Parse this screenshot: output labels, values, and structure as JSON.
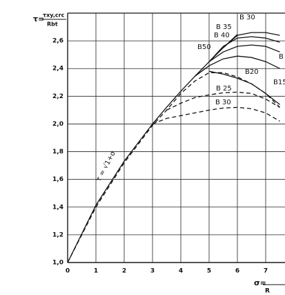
{
  "chart_data": {
    "type": "line",
    "ylabel": {
      "lhs": "τ=",
      "num": "τxy,crc",
      "den": "Rbt"
    },
    "xlabel": {
      "lhs": "σ=",
      "den": "R"
    },
    "x": [
      0,
      1,
      2,
      3,
      3.5,
      4,
      4.5,
      5,
      5.5,
      6,
      6.5,
      7,
      7.5
    ],
    "series": [
      {
        "style": "solid",
        "color": "#111111",
        "values": [
          1,
          1.414,
          1.732,
          2,
          2.121,
          2.236,
          2.345,
          2.449,
          2.55,
          2.646,
          null,
          null,
          null
        ]
      },
      {
        "style": "solid",
        "color": "#111111",
        "values": [
          null,
          null,
          null,
          null,
          null,
          null,
          null,
          null,
          2.55,
          2.64,
          2.66,
          2.66,
          2.64
        ]
      },
      {
        "style": "solid",
        "color": "#111111",
        "values": [
          null,
          null,
          null,
          null,
          null,
          null,
          null,
          2.449,
          2.56,
          2.62,
          2.63,
          2.62,
          2.59
        ]
      },
      {
        "style": "solid",
        "color": "#111111",
        "values": [
          null,
          null,
          null,
          null,
          null,
          null,
          null,
          2.449,
          2.52,
          2.56,
          2.57,
          2.56,
          2.52
        ]
      },
      {
        "style": "solid",
        "color": "#111111",
        "values": [
          null,
          null,
          null,
          null,
          null,
          null,
          2.345,
          2.42,
          2.47,
          2.49,
          2.48,
          2.45,
          2.4
        ]
      },
      {
        "style": "solid",
        "color": "#111111",
        "values": [
          null,
          null,
          null,
          null,
          null,
          null,
          null,
          2.38,
          2.36,
          2.33,
          2.29,
          2.22,
          2.14
        ]
      },
      {
        "style": "dashed",
        "color": "#111111",
        "values": [
          1,
          1.4,
          1.72,
          1.99,
          2.1,
          2.22,
          2.31,
          2.37,
          2.37,
          2.34,
          2.29,
          2.22,
          2.12
        ]
      },
      {
        "style": "dashed",
        "color": "#111111",
        "values": [
          null,
          null,
          null,
          null,
          2.1,
          2.15,
          2.19,
          2.21,
          2.225,
          2.23,
          2.22,
          2.18,
          2.12
        ]
      },
      {
        "style": "dashed",
        "color": "#111111",
        "values": [
          null,
          null,
          null,
          2.0,
          2.04,
          2.06,
          2.08,
          2.1,
          2.115,
          2.12,
          2.11,
          2.08,
          2.02
        ]
      }
    ],
    "annotations": [
      "B 30",
      "B 35",
      "B 40",
      "B50",
      "B",
      "B20",
      "B15",
      "B 25",
      "B 30",
      "τ = √1+σ"
    ],
    "xlim": [
      0,
      7.7
    ],
    "ylim": [
      1.0,
      2.8
    ],
    "xticks": [
      {
        "value": 0,
        "label": "0"
      },
      1,
      2,
      3,
      4,
      5,
      6,
      7
    ],
    "yticks": [
      {
        "value": 1.0,
        "label": "1,0"
      },
      {
        "value": 1.2,
        "label": "1,2"
      },
      {
        "value": 1.4,
        "label": "1,4"
      },
      {
        "value": 1.6,
        "label": "1,6"
      },
      {
        "value": 1.8,
        "label": "1,8"
      },
      {
        "value": 2.0,
        "label": "2,0"
      },
      {
        "value": 2.2,
        "label": "2,2"
      },
      {
        "value": 2.4,
        "label": "2,4"
      },
      {
        "value": 2.6,
        "label": "2,6"
      }
    ],
    "grid": true
  }
}
